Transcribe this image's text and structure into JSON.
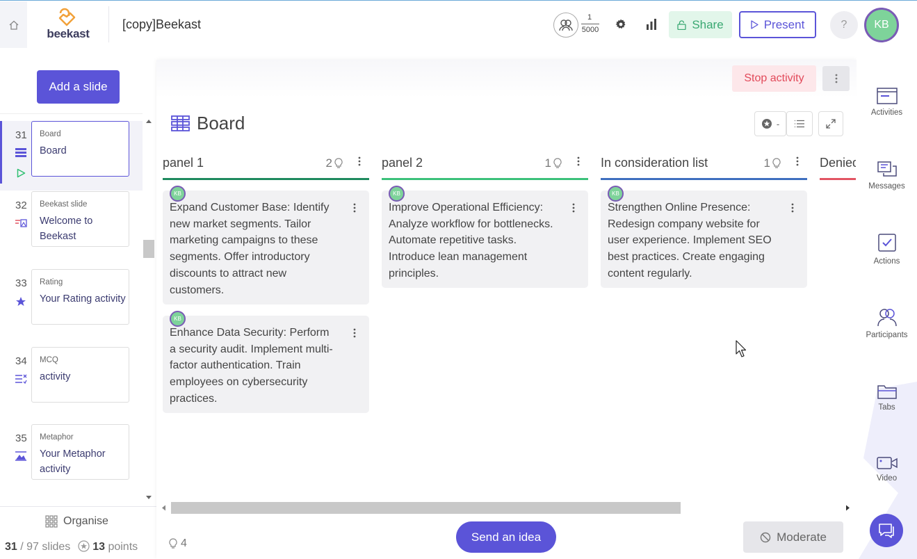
{
  "header": {
    "logo_text": "beekast",
    "doc_title": "[copy]Beekast",
    "participants": {
      "current": "1",
      "max": "5000"
    },
    "share_label": "Share",
    "present_label": "Present",
    "help_label": "?",
    "avatar_initials": "KB"
  },
  "sidebar": {
    "add_slide_label": "Add a slide",
    "slides": [
      {
        "num": "31",
        "type": "Board",
        "name": "Board",
        "active": true
      },
      {
        "num": "32",
        "type": "Beekast slide",
        "name": "Welcome to Beekast"
      },
      {
        "num": "33",
        "type": "Rating",
        "name": "Your Rating activity"
      },
      {
        "num": "34",
        "type": "MCQ",
        "name": "activity"
      },
      {
        "num": "35",
        "type": "Metaphor",
        "name": "Your Metaphor activity"
      }
    ],
    "organise_label": "Organise",
    "slides_current": "31",
    "slides_total": "/ 97 slides",
    "points_value": "13",
    "points_label": "points"
  },
  "activity": {
    "stop_label": "Stop activity",
    "board_title": "Board",
    "sort_label": "-",
    "columns": [
      {
        "title": "panel 1",
        "count": "2",
        "color": "#1f8a5e",
        "cards": [
          {
            "author": "KB",
            "text": "Expand Customer Base: Identify new market segments. Tailor marketing campaigns to these segments. Offer introductory discounts to attract new customers."
          },
          {
            "author": "KB",
            "text": "Enhance Data Security: Perform a security audit. Implement multi-factor authentication. Train employees on cybersecurity practices."
          }
        ]
      },
      {
        "title": "panel 2",
        "count": "1",
        "color": "#3cc17a",
        "cards": [
          {
            "author": "KB",
            "text": "Improve Operational Efficiency: Analyze workflow for bottlenecks. Automate repetitive tasks. Introduce lean management principles."
          }
        ]
      },
      {
        "title": "In consideration list",
        "count": "1",
        "color": "#3f6fbf",
        "cards": [
          {
            "author": "KB",
            "text": "Strengthen Online Presence: Redesign company website for user experience. Implement SEO best practices. Create engaging content regularly."
          }
        ]
      },
      {
        "title": "Denied",
        "color": "#e25563"
      }
    ],
    "idea_count": "4",
    "send_idea_label": "Send an idea",
    "moderate_label": "Moderate"
  },
  "rightrail": {
    "items": [
      {
        "label": "Activities",
        "icon": "activities-icon"
      },
      {
        "label": "Messages",
        "icon": "messages-icon"
      },
      {
        "label": "Actions",
        "icon": "actions-icon"
      },
      {
        "label": "Participants",
        "icon": "participants-icon"
      },
      {
        "label": "Tabs",
        "icon": "tabs-icon"
      },
      {
        "label": "Video",
        "icon": "video-icon"
      }
    ]
  },
  "colors": {
    "accent": "#5b54d8",
    "share_green": "#3aa872",
    "stop_red": "#e24a5a",
    "avatar_green": "#7ed39a"
  }
}
